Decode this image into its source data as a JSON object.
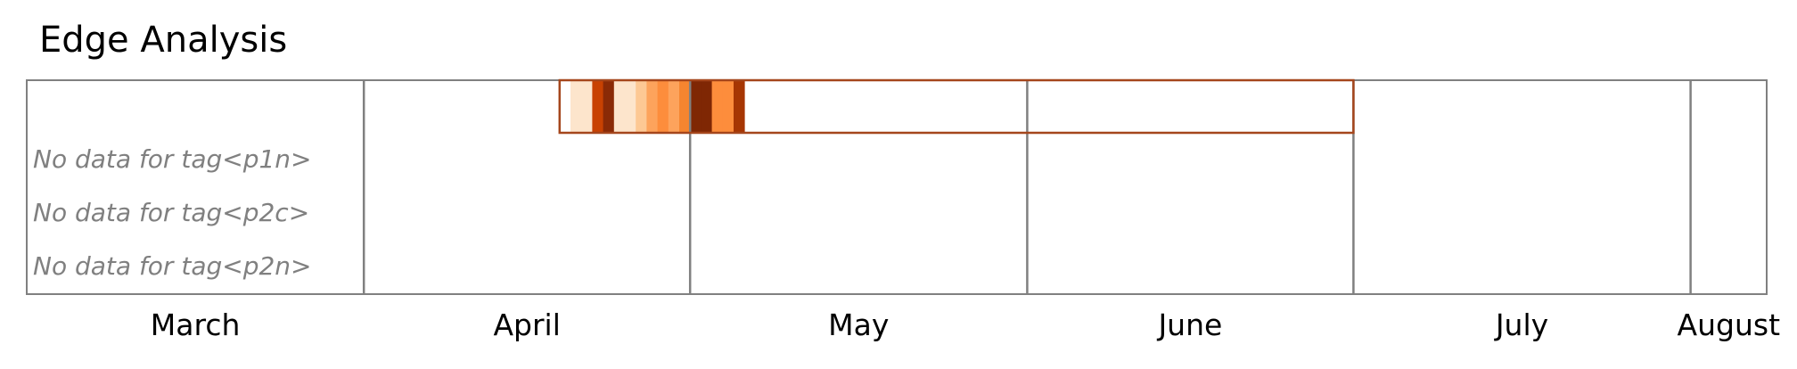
{
  "title": "Edge Analysis",
  "chart_data": {
    "type": "heatmap",
    "title": "Edge Analysis",
    "x_axis": {
      "type": "date",
      "range": [
        "2020-03-01",
        "2020-08-08"
      ],
      "tick_labels": [
        "March",
        "April",
        "May",
        "June",
        "July",
        "August"
      ],
      "month_boundaries": [
        "2020-03-01",
        "2020-04-01",
        "2020-05-01",
        "2020-06-01",
        "2020-07-01",
        "2020-08-01",
        "2020-08-08"
      ]
    },
    "rows": [
      {
        "range": [
          "2020-04-19",
          "2020-07-01"
        ],
        "cells": [
          {
            "date": "2020-04-19",
            "color": "#ffffff"
          },
          {
            "date": "2020-04-20",
            "color": "#fde5cc"
          },
          {
            "date": "2020-04-21",
            "color": "#fde5cc"
          },
          {
            "date": "2020-04-22",
            "color": "#c84102"
          },
          {
            "date": "2020-04-23",
            "color": "#8a2a06"
          },
          {
            "date": "2020-04-24",
            "color": "#fde5cc"
          },
          {
            "date": "2020-04-25",
            "color": "#fde5cc"
          },
          {
            "date": "2020-04-26",
            "color": "#fdc894"
          },
          {
            "date": "2020-04-27",
            "color": "#fda35c"
          },
          {
            "date": "2020-04-28",
            "color": "#fd8d3c"
          },
          {
            "date": "2020-04-29",
            "color": "#fda35c"
          },
          {
            "date": "2020-04-30",
            "color": "#f6852f"
          },
          {
            "date": "2020-05-01",
            "color": "#7f2704"
          },
          {
            "date": "2020-05-02",
            "color": "#7f2704"
          },
          {
            "date": "2020-05-03",
            "color": "#fd8d3c"
          },
          {
            "date": "2020-05-04",
            "color": "#fd8d3c"
          },
          {
            "date": "2020-05-05",
            "color": "#a63603"
          }
        ]
      }
    ],
    "missing_tags": [
      "No data for tag<p1n>",
      "No data for tag<p2c>",
      "No data for tag<p2n>"
    ],
    "colors": {
      "frame": "#808080",
      "row_border": "#a5461c",
      "missing_text": "#808080"
    }
  }
}
